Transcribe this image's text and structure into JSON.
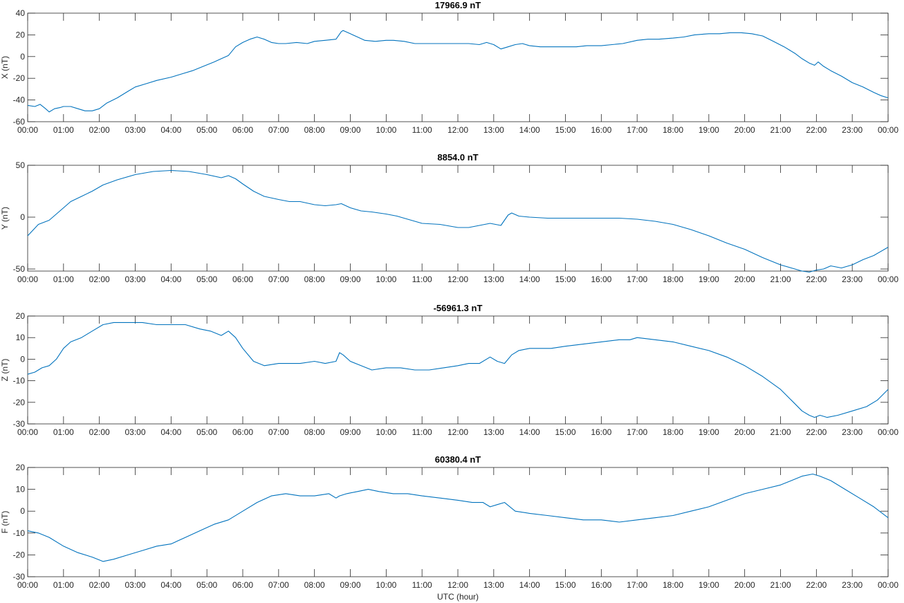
{
  "chart_data": [
    {
      "type": "line",
      "title": "17966.9 nT",
      "ylabel": "X (nT)",
      "xlabel": "",
      "xlim": [
        0,
        24
      ],
      "ylim": [
        -60,
        40
      ],
      "yticks": [
        -60,
        -40,
        -20,
        0,
        20,
        40
      ],
      "xticks": [
        "00:00",
        "01:00",
        "02:00",
        "03:00",
        "04:00",
        "05:00",
        "06:00",
        "07:00",
        "08:00",
        "09:00",
        "10:00",
        "11:00",
        "12:00",
        "13:00",
        "14:00",
        "15:00",
        "16:00",
        "17:00",
        "18:00",
        "19:00",
        "20:00",
        "21:00",
        "22:00",
        "23:00",
        "00:00"
      ],
      "color": "#0072bd",
      "grid": false,
      "series": [
        {
          "x": [
            0,
            0.2,
            0.35,
            0.5,
            0.6,
            0.75,
            0.9,
            1.0,
            1.2,
            1.4,
            1.6,
            1.8,
            2.0,
            2.2,
            2.5,
            2.8,
            3.0,
            3.3,
            3.6,
            4.0,
            4.3,
            4.6,
            4.9,
            5.2,
            5.4,
            5.6,
            5.8,
            6.0,
            6.2,
            6.4,
            6.6,
            6.8,
            7.0,
            7.2,
            7.5,
            7.8,
            8.0,
            8.3,
            8.6,
            8.75,
            8.8,
            9.0,
            9.2,
            9.4,
            9.7,
            10.0,
            10.2,
            10.5,
            10.8,
            11.0,
            11.3,
            11.6,
            12.0,
            12.3,
            12.6,
            12.8,
            13.0,
            13.2,
            13.4,
            13.6,
            13.8,
            14.0,
            14.3,
            14.6,
            15.0,
            15.3,
            15.6,
            16.0,
            16.3,
            16.6,
            17.0,
            17.3,
            17.6,
            18.0,
            18.3,
            18.6,
            19.0,
            19.3,
            19.6,
            19.9,
            20.2,
            20.5,
            20.8,
            21.1,
            21.4,
            21.6,
            21.8,
            21.95,
            22.05,
            22.2,
            22.4,
            22.7,
            23.0,
            23.3,
            23.6,
            23.8,
            24.0
          ],
          "y": [
            -45,
            -46,
            -44,
            -48,
            -51,
            -48,
            -47,
            -46,
            -46,
            -48,
            -50,
            -50,
            -48,
            -43,
            -38,
            -32,
            -28,
            -25,
            -22,
            -19,
            -16,
            -13,
            -9,
            -5,
            -2,
            1,
            9,
            13,
            16,
            18,
            16,
            13,
            12,
            12,
            13,
            12,
            14,
            15,
            16,
            23,
            24,
            21,
            18,
            15,
            14,
            15,
            15,
            14,
            12,
            12,
            12,
            12,
            12,
            12,
            11,
            13,
            11,
            7,
            9,
            11,
            12,
            10,
            9,
            9,
            9,
            9,
            10,
            10,
            11,
            12,
            15,
            16,
            16,
            17,
            18,
            20,
            21,
            21,
            22,
            22,
            21,
            19,
            14,
            9,
            3,
            -2,
            -6,
            -8,
            -5,
            -9,
            -13,
            -18,
            -24,
            -28,
            -33,
            -36,
            -38
          ]
        }
      ]
    },
    {
      "type": "line",
      "title": "8854.0 nT",
      "ylabel": "Y (nT)",
      "xlabel": "",
      "xlim": [
        0,
        24
      ],
      "ylim": [
        -52,
        50
      ],
      "yticks": [
        -50,
        0,
        50
      ],
      "xticks": [
        "00:00",
        "01:00",
        "02:00",
        "03:00",
        "04:00",
        "05:00",
        "06:00",
        "07:00",
        "08:00",
        "09:00",
        "10:00",
        "11:00",
        "12:00",
        "13:00",
        "14:00",
        "15:00",
        "16:00",
        "17:00",
        "18:00",
        "19:00",
        "20:00",
        "21:00",
        "22:00",
        "23:00",
        "00:00"
      ],
      "color": "#0072bd",
      "grid": false,
      "series": [
        {
          "x": [
            0,
            0.3,
            0.6,
            0.9,
            1.2,
            1.5,
            1.8,
            2.1,
            2.5,
            3.0,
            3.5,
            4.0,
            4.5,
            5.0,
            5.4,
            5.6,
            5.8,
            6.0,
            6.3,
            6.6,
            7.0,
            7.3,
            7.6,
            8.0,
            8.3,
            8.6,
            8.75,
            9.0,
            9.3,
            9.6,
            10.0,
            10.3,
            10.6,
            11.0,
            11.5,
            12.0,
            12.3,
            12.6,
            12.9,
            13.2,
            13.4,
            13.5,
            13.7,
            14.0,
            14.5,
            15.0,
            15.5,
            16.0,
            16.5,
            17.0,
            17.5,
            18.0,
            18.5,
            19.0,
            19.5,
            20.0,
            20.5,
            21.0,
            21.3,
            21.6,
            21.8,
            22.0,
            22.2,
            22.4,
            22.7,
            23.0,
            23.3,
            23.6,
            24.0
          ],
          "y": [
            -18,
            -7,
            -3,
            6,
            15,
            20,
            25,
            31,
            36,
            41,
            44,
            45,
            44,
            41,
            38,
            40,
            37,
            32,
            25,
            20,
            17,
            15,
            15,
            12,
            11,
            12,
            13,
            9,
            6,
            5,
            3,
            1,
            -2,
            -6,
            -7,
            -10,
            -10,
            -8,
            -6,
            -8,
            2,
            4,
            1,
            0,
            -1,
            -1,
            -1,
            -1,
            -1,
            -2,
            -4,
            -7,
            -12,
            -18,
            -25,
            -31,
            -39,
            -46,
            -49,
            -52,
            -53,
            -51,
            -50,
            -47,
            -49,
            -46,
            -41,
            -37,
            -29
          ]
        }
      ]
    },
    {
      "type": "line",
      "title": "-56961.3 nT",
      "ylabel": "Z (nT)",
      "xlabel": "",
      "xlim": [
        0,
        24
      ],
      "ylim": [
        -30,
        20
      ],
      "yticks": [
        -30,
        -20,
        -10,
        0,
        10,
        20
      ],
      "xticks": [
        "00:00",
        "01:00",
        "02:00",
        "03:00",
        "04:00",
        "05:00",
        "06:00",
        "07:00",
        "08:00",
        "09:00",
        "10:00",
        "11:00",
        "12:00",
        "13:00",
        "14:00",
        "15:00",
        "16:00",
        "17:00",
        "18:00",
        "19:00",
        "20:00",
        "21:00",
        "22:00",
        "23:00",
        "00:00"
      ],
      "color": "#0072bd",
      "grid": false,
      "series": [
        {
          "x": [
            0,
            0.2,
            0.4,
            0.6,
            0.8,
            1.0,
            1.2,
            1.5,
            1.8,
            2.1,
            2.4,
            2.8,
            3.2,
            3.6,
            4.0,
            4.4,
            4.8,
            5.1,
            5.4,
            5.6,
            5.8,
            6.0,
            6.3,
            6.6,
            7.0,
            7.3,
            7.6,
            8.0,
            8.3,
            8.6,
            8.7,
            8.8,
            9.0,
            9.3,
            9.6,
            10.0,
            10.4,
            10.8,
            11.2,
            11.6,
            12.0,
            12.3,
            12.6,
            12.9,
            13.1,
            13.3,
            13.5,
            13.7,
            14.0,
            14.3,
            14.6,
            15.0,
            15.5,
            16.0,
            16.5,
            16.8,
            17.0,
            17.5,
            18.0,
            18.5,
            19.0,
            19.5,
            20.0,
            20.5,
            21.0,
            21.3,
            21.6,
            21.8,
            21.95,
            22.1,
            22.3,
            22.6,
            23.0,
            23.4,
            23.7,
            24.0
          ],
          "y": [
            -7,
            -6,
            -4,
            -3,
            0,
            5,
            8,
            10,
            13,
            16,
            17,
            17,
            17,
            16,
            16,
            16,
            14,
            13,
            11,
            13,
            10,
            5,
            -1,
            -3,
            -2,
            -2,
            -2,
            -1,
            -2,
            -1,
            3,
            2,
            -1,
            -3,
            -5,
            -4,
            -4,
            -5,
            -5,
            -4,
            -3,
            -2,
            -2,
            1,
            -1,
            -2,
            2,
            4,
            5,
            5,
            5,
            6,
            7,
            8,
            9,
            9,
            10,
            9,
            8,
            6,
            4,
            1,
            -3,
            -8,
            -14,
            -19,
            -24,
            -26,
            -27,
            -26,
            -27,
            -26,
            -24,
            -22,
            -19,
            -14
          ]
        }
      ]
    },
    {
      "type": "line",
      "title": "60380.4 nT",
      "ylabel": "F (nT)",
      "xlabel": "UTC (hour)",
      "xlim": [
        0,
        24
      ],
      "ylim": [
        -30,
        20
      ],
      "yticks": [
        -30,
        -20,
        -10,
        0,
        10,
        20
      ],
      "xticks": [
        "00:00",
        "01:00",
        "02:00",
        "03:00",
        "04:00",
        "05:00",
        "06:00",
        "07:00",
        "08:00",
        "09:00",
        "10:00",
        "11:00",
        "12:00",
        "13:00",
        "14:00",
        "15:00",
        "16:00",
        "17:00",
        "18:00",
        "19:00",
        "20:00",
        "21:00",
        "22:00",
        "23:00",
        "00:00"
      ],
      "color": "#0072bd",
      "grid": false,
      "series": [
        {
          "x": [
            0,
            0.3,
            0.6,
            1.0,
            1.4,
            1.8,
            2.1,
            2.4,
            2.8,
            3.2,
            3.6,
            4.0,
            4.4,
            4.8,
            5.2,
            5.6,
            6.0,
            6.4,
            6.8,
            7.2,
            7.6,
            8.0,
            8.4,
            8.6,
            8.7,
            8.9,
            9.2,
            9.5,
            9.8,
            10.2,
            10.6,
            11.0,
            11.5,
            12.0,
            12.4,
            12.7,
            12.9,
            13.1,
            13.3,
            13.6,
            14.0,
            14.5,
            15.0,
            15.5,
            16.0,
            16.5,
            17.0,
            17.5,
            18.0,
            18.5,
            19.0,
            19.5,
            20.0,
            20.5,
            21.0,
            21.3,
            21.6,
            21.9,
            22.1,
            22.4,
            22.8,
            23.2,
            23.6,
            24.0
          ],
          "y": [
            -9,
            -10,
            -12,
            -16,
            -19,
            -21,
            -23,
            -22,
            -20,
            -18,
            -16,
            -15,
            -12,
            -9,
            -6,
            -4,
            0,
            4,
            7,
            8,
            7,
            7,
            8,
            6,
            7,
            8,
            9,
            10,
            9,
            8,
            8,
            7,
            6,
            5,
            4,
            4,
            2,
            3,
            4,
            0,
            -1,
            -2,
            -3,
            -4,
            -4,
            -5,
            -4,
            -3,
            -2,
            0,
            2,
            5,
            8,
            10,
            12,
            14,
            16,
            17,
            16,
            14,
            10,
            6,
            2,
            -3
          ]
        }
      ]
    }
  ]
}
